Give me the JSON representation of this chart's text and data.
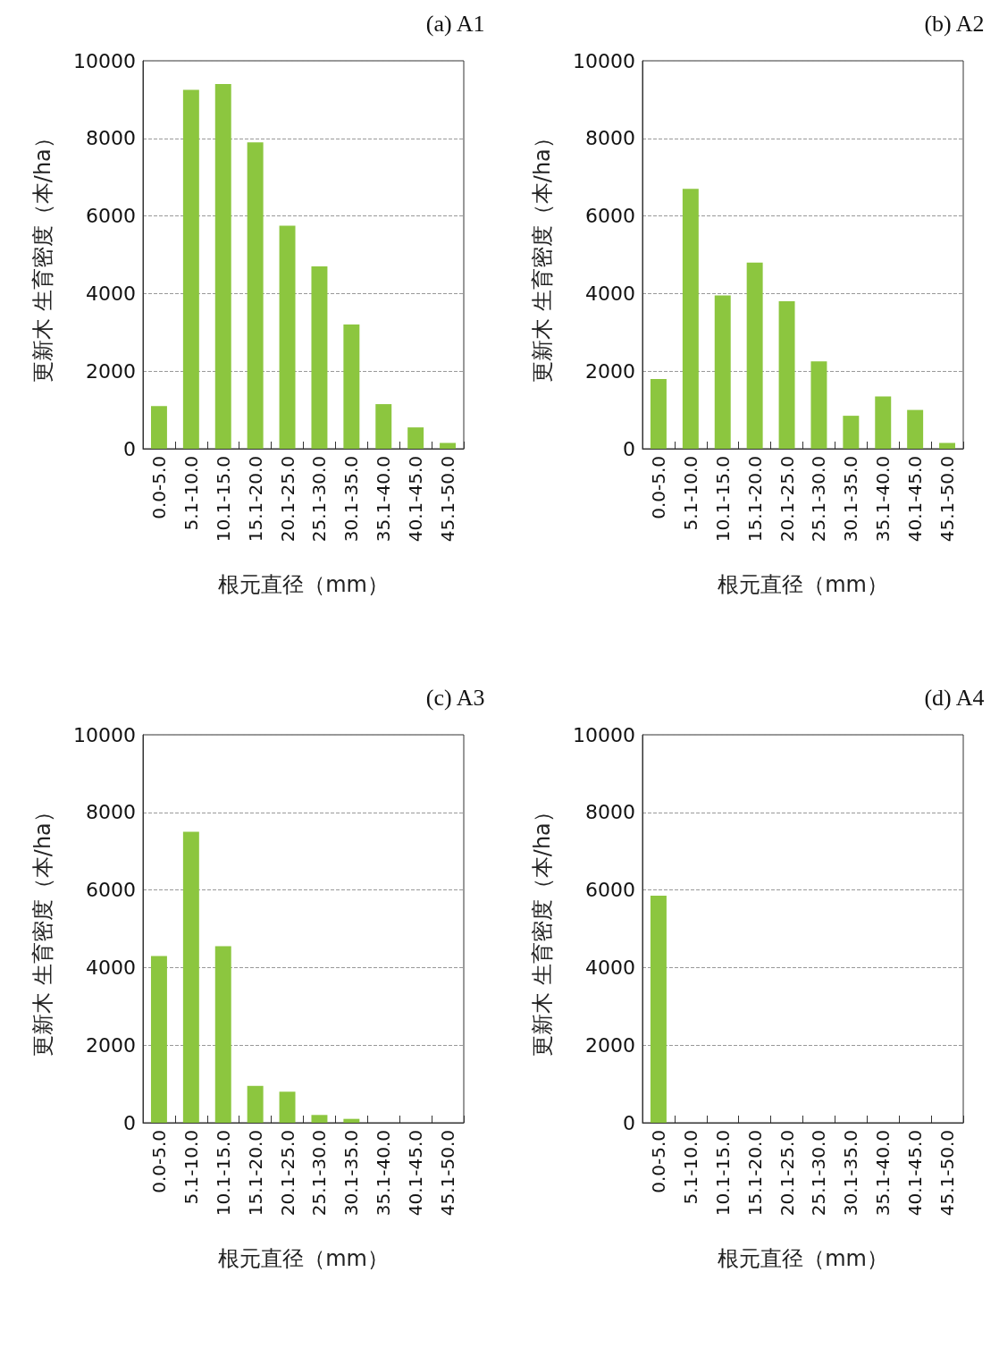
{
  "chart_data": [
    {
      "type": "bar",
      "title": "(a) A1",
      "xlabel": "根元直径（mm）",
      "ylabel": "更新木 生育密度（本/ha）",
      "categories": [
        "0.0-5.0",
        "5.1-10.0",
        "10.1-15.0",
        "15.1-20.0",
        "20.1-25.0",
        "25.1-30.0",
        "30.1-35.0",
        "35.1-40.0",
        "40.1-45.0",
        "45.1-50.0"
      ],
      "values": [
        1100,
        9250,
        9400,
        7900,
        5750,
        4700,
        3200,
        1150,
        550,
        150
      ],
      "color": "#8cc63f",
      "ylim": [
        0,
        10000
      ],
      "yticks": [
        0,
        2000,
        4000,
        6000,
        8000,
        10000
      ],
      "grid": "y"
    },
    {
      "type": "bar",
      "title": "(b) A2",
      "xlabel": "根元直径（mm）",
      "ylabel": "更新木 生育密度（本/ha）",
      "categories": [
        "0.0-5.0",
        "5.1-10.0",
        "10.1-15.0",
        "15.1-20.0",
        "20.1-25.0",
        "25.1-30.0",
        "30.1-35.0",
        "35.1-40.0",
        "40.1-45.0",
        "45.1-50.0"
      ],
      "values": [
        1800,
        6700,
        3950,
        4800,
        3800,
        2250,
        850,
        1350,
        1000,
        150
      ],
      "color": "#8cc63f",
      "ylim": [
        0,
        10000
      ],
      "yticks": [
        0,
        2000,
        4000,
        6000,
        8000,
        10000
      ],
      "grid": "y"
    },
    {
      "type": "bar",
      "title": "(c) A3",
      "xlabel": "根元直径（mm）",
      "ylabel": "更新木 生育密度（本/ha）",
      "categories": [
        "0.0-5.0",
        "5.1-10.0",
        "10.1-15.0",
        "15.1-20.0",
        "20.1-25.0",
        "25.1-30.0",
        "30.1-35.0",
        "35.1-40.0",
        "40.1-45.0",
        "45.1-50.0"
      ],
      "values": [
        4300,
        7500,
        4550,
        950,
        800,
        200,
        100,
        0,
        0,
        0
      ],
      "color": "#8cc63f",
      "ylim": [
        0,
        10000
      ],
      "yticks": [
        0,
        2000,
        4000,
        6000,
        8000,
        10000
      ],
      "grid": "y"
    },
    {
      "type": "bar",
      "title": "(d) A4",
      "xlabel": "根元直径（mm）",
      "ylabel": "更新木 生育密度（本/ha）",
      "categories": [
        "0.0-5.0",
        "5.1-10.0",
        "10.1-15.0",
        "15.1-20.0",
        "20.1-25.0",
        "25.1-30.0",
        "30.1-35.0",
        "35.1-40.0",
        "40.1-45.0",
        "45.1-50.0"
      ],
      "values": [
        5850,
        0,
        0,
        0,
        0,
        0,
        0,
        0,
        0,
        0
      ],
      "color": "#8cc63f",
      "ylim": [
        0,
        10000
      ],
      "yticks": [
        0,
        2000,
        4000,
        6000,
        8000,
        10000
      ],
      "grid": "y"
    }
  ]
}
